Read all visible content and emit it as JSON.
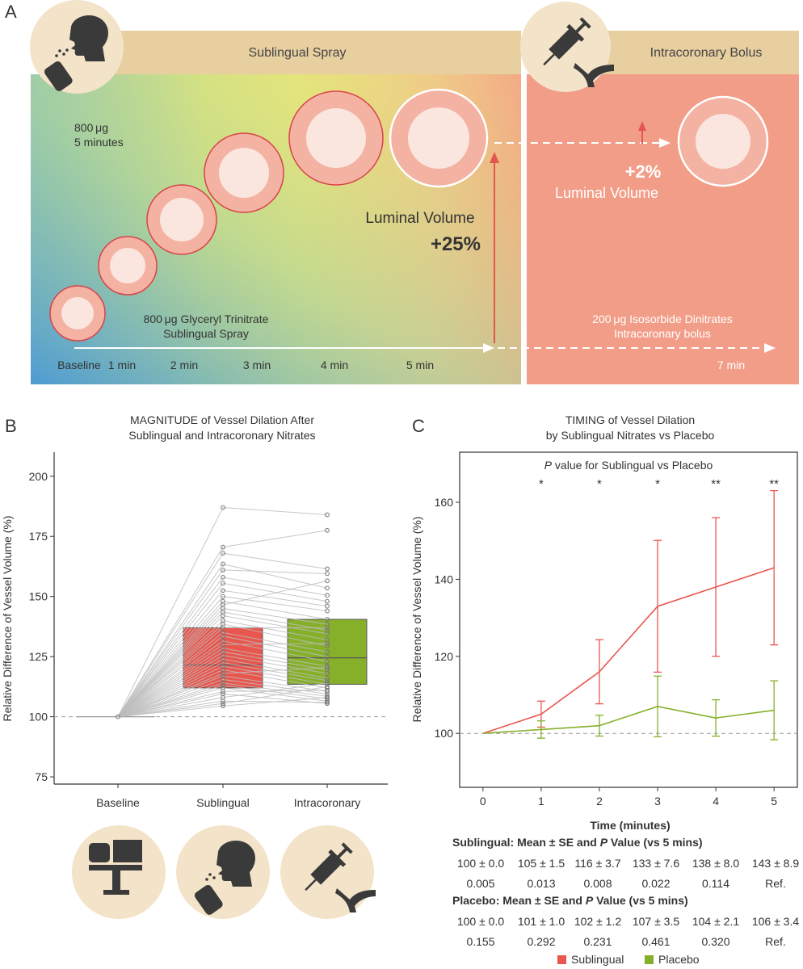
{
  "panel_a": {
    "letter": "A",
    "spray_header": "Sublingual Spray",
    "bolus_header": "Intracoronary Bolus",
    "dose_line1": "800 μg",
    "dose_line2": "5 minutes",
    "lum_label": "Luminal Volume",
    "lum_change": "+25%",
    "bolus_change": "+2%",
    "bolus_lum_label": "Luminal Volume",
    "gtn_line1": "800 μg Glyceryl Trinitrate",
    "gtn_line2": "Sublingual Spray",
    "isdn_line1": "200 μg Isosorbide Dinitrates",
    "isdn_line2": "Intracoronary bolus",
    "time_labels": [
      "Baseline",
      "1 min",
      "2 min",
      "3 min",
      "4 min",
      "5 min",
      "7 min"
    ],
    "colors": {
      "header": "#e8cfa0",
      "bolus_bg": "#f29d87",
      "circle_outer": "#f4b2a2",
      "circle_inner": "#fbe5df",
      "circle_edge": "#d8434a",
      "arrow": "#e4564d",
      "icon": "#3a3a3a",
      "icon_bg": "#f3e3c8"
    }
  },
  "panel_b": {
    "letter": "B",
    "title_line1": "MAGNITUDE of Vessel Dilation After",
    "title_line2": "Sublingual and Intracoronary Nitrates",
    "colors": {
      "sublingual": "#e9564d",
      "intracoronary": "#86b02a",
      "lines": "#bdbdbd",
      "points": "#777777"
    }
  },
  "panel_c": {
    "letter": "C",
    "title_line1": "TIMING of Vessel Dilation",
    "title_line2": "by Sublingual Nitrates vs Placebo",
    "pvalue_italic": "P",
    "pvalue_rest": " value for Sublingual vs Placebo",
    "table": {
      "sub_title_a": "Sublingual: Mean ± SE and ",
      "title_p": "P",
      "title_b": " Value (vs 5 mins)",
      "sub_means": [
        "100 ± 0.0",
        "105 ± 1.5",
        "116 ± 3.7",
        "133 ± 7.6",
        "138 ± 8.0",
        "143 ± 8.9"
      ],
      "sub_p": [
        "0.005",
        "0.013",
        "0.008",
        "0.022",
        "0.114",
        "Ref."
      ],
      "pla_title_a": "Placebo: Mean ± SE and ",
      "pla_means": [
        "100 ± 0.0",
        "101 ± 1.0",
        "102 ± 1.2",
        "107 ± 3.5",
        "104 ± 2.1",
        "106 ± 3.4"
      ],
      "pla_p": [
        "0.155",
        "0.292",
        "0.231",
        "0.461",
        "0.320",
        "Ref."
      ]
    },
    "legend": [
      "Sublingual",
      "Placebo"
    ],
    "colors": {
      "sublingual": "#e9564d",
      "placebo": "#86b02a"
    }
  },
  "chart_data": [
    {
      "type": "box",
      "title": "MAGNITUDE of Vessel Dilation After Sublingual and Intracoronary Nitrates",
      "xlabel": "",
      "ylabel": "Relative Difference of Vessel Volume (%)",
      "ylim": [
        72,
        210
      ],
      "yticks": [
        75,
        100,
        125,
        150,
        175,
        200
      ],
      "categories": [
        "Baseline",
        "Sublingual",
        "Intracoronary"
      ],
      "reference_line": 100,
      "boxes": [
        {
          "name": "Sublingual",
          "q1": 112,
          "median": 121.5,
          "q3": 137
        },
        {
          "name": "Intracoronary",
          "q1": 113.5,
          "median": 124.5,
          "q3": 140.5
        }
      ],
      "paired": [
        [
          187,
          184
        ],
        [
          170.5,
          177.5
        ],
        [
          168,
          161.5
        ],
        [
          163.5,
          153.5
        ],
        [
          161,
          159.5
        ],
        [
          158,
          150.5
        ],
        [
          155.5,
          148
        ],
        [
          152.5,
          146
        ],
        [
          150,
          144
        ],
        [
          148,
          140.5
        ],
        [
          146.5,
          156.5
        ],
        [
          145,
          138.5
        ],
        [
          143.5,
          136
        ],
        [
          142,
          134.5
        ],
        [
          140,
          132
        ],
        [
          138.5,
          129.5
        ],
        [
          137,
          137
        ],
        [
          135,
          127
        ],
        [
          133.5,
          125
        ],
        [
          131.5,
          123
        ],
        [
          130,
          130.5
        ],
        [
          128.5,
          121
        ],
        [
          127,
          119.5
        ],
        [
          125.5,
          118
        ],
        [
          124,
          116
        ],
        [
          122.5,
          115
        ],
        [
          121,
          113.5
        ],
        [
          119.5,
          112
        ],
        [
          118,
          120.5
        ],
        [
          117,
          110.5
        ],
        [
          115.5,
          109.5
        ],
        [
          114,
          108.5
        ],
        [
          113,
          107.5
        ],
        [
          112,
          106.5
        ],
        [
          110.5,
          111
        ],
        [
          109.5,
          105.5
        ],
        [
          108,
          114
        ],
        [
          106.5,
          106
        ],
        [
          105.5,
          112.5
        ],
        [
          104.5,
          108
        ]
      ]
    },
    {
      "type": "line",
      "title": "TIMING of Vessel Dilation by Sublingual Nitrates vs Placebo",
      "xlabel": "Time (minutes)",
      "ylabel": "Relative Difference of Vessel Volume (%)",
      "xlim": [
        -0.4,
        5.4
      ],
      "ylim": [
        86,
        173
      ],
      "x": [
        0,
        1,
        2,
        3,
        4,
        5
      ],
      "yticks": [
        100,
        120,
        140,
        160
      ],
      "reference_line": 100,
      "significance": [
        "*",
        "*",
        "*",
        "**",
        "**"
      ],
      "series": [
        {
          "name": "Sublingual",
          "values": [
            100,
            105,
            116,
            133,
            138,
            143
          ],
          "se": [
            0,
            1.5,
            3.7,
            7.6,
            8.0,
            8.9
          ]
        },
        {
          "name": "Placebo",
          "values": [
            100,
            101,
            102,
            107,
            104,
            106
          ],
          "se": [
            0,
            1.0,
            1.2,
            3.5,
            2.1,
            3.4
          ]
        }
      ]
    }
  ]
}
